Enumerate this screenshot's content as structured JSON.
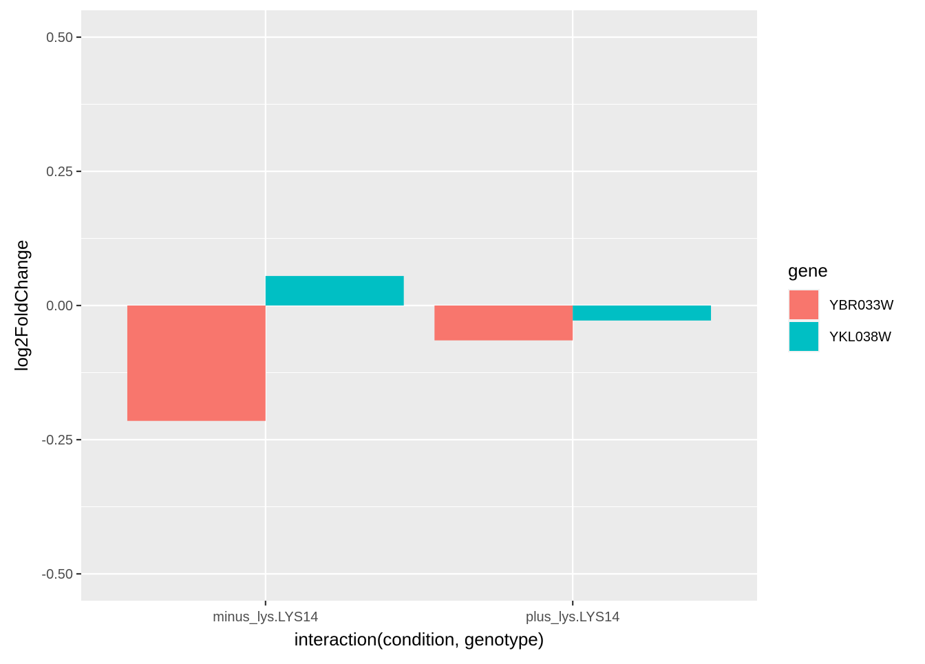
{
  "chart_data": {
    "type": "bar",
    "categories": [
      "minus_lys.LYS14",
      "plus_lys.LYS14"
    ],
    "series": [
      {
        "name": "YBR033W",
        "color": "#F8766D",
        "values": [
          -0.215,
          -0.065
        ]
      },
      {
        "name": "YKL038W",
        "color": "#00BFC4",
        "values": [
          0.055,
          -0.028
        ]
      }
    ],
    "xlabel": "interaction(condition, genotype)",
    "ylabel": "log2FoldChange",
    "ylim": [
      -0.55,
      0.55
    ],
    "yticks": [
      -0.5,
      -0.25,
      0,
      0.25,
      0.5
    ],
    "ytick_labels": [
      "-0.50",
      "-0.25",
      "0.00",
      "0.25",
      "0.50"
    ],
    "legend_title": "gene",
    "legend_position": "right",
    "grid": true,
    "panel_color": "#EBEBEB",
    "grid_color": "#FFFFFF"
  }
}
